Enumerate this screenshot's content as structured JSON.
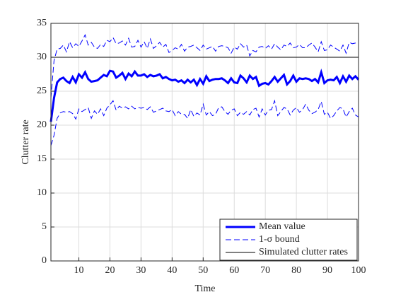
{
  "chart_data": {
    "type": "line",
    "xlabel": "Time",
    "ylabel": "Clutter rate",
    "x": [
      1,
      2,
      3,
      4,
      5,
      6,
      7,
      8,
      9,
      10,
      11,
      12,
      13,
      14,
      15,
      16,
      17,
      18,
      19,
      20,
      21,
      22,
      23,
      24,
      25,
      26,
      27,
      28,
      29,
      30,
      31,
      32,
      33,
      34,
      35,
      36,
      37,
      38,
      39,
      40,
      41,
      42,
      43,
      44,
      45,
      46,
      47,
      48,
      49,
      50,
      51,
      52,
      53,
      54,
      55,
      56,
      57,
      58,
      59,
      60,
      61,
      62,
      63,
      64,
      65,
      66,
      67,
      68,
      69,
      70,
      71,
      72,
      73,
      74,
      75,
      76,
      77,
      78,
      79,
      80,
      81,
      82,
      83,
      84,
      85,
      86,
      87,
      88,
      89,
      90,
      91,
      92,
      93,
      94,
      95,
      96,
      97,
      98,
      99,
      100
    ],
    "xlim": [
      1,
      100
    ],
    "xticks": [
      10,
      20,
      30,
      40,
      50,
      60,
      70,
      80,
      90,
      100
    ],
    "ylim": [
      0,
      35
    ],
    "yticks": [
      0,
      5,
      10,
      15,
      20,
      25,
      30,
      35
    ],
    "grid": true,
    "legend": "lower right",
    "series": [
      {
        "name": "Mean value",
        "color": "#0000ff",
        "style": "solid",
        "width": 3,
        "values": [
          20.5,
          24,
          26.3,
          26.8,
          27,
          26.5,
          26.2,
          27.1,
          26.3,
          27.5,
          27,
          27.8,
          26.8,
          26.4,
          26.5,
          26.6,
          27,
          27.4,
          27.2,
          28,
          27.9,
          27,
          27.3,
          27.7,
          26.8,
          27.6,
          27.2,
          27.9,
          27.3,
          27.3,
          27.5,
          27.1,
          27.4,
          27.2,
          27.3,
          27.5,
          26.9,
          27.1,
          26.8,
          26.6,
          26.7,
          26.4,
          26.6,
          26.2,
          26.7,
          26.3,
          26.7,
          25.9,
          26.8,
          26.1,
          27.2,
          26.5,
          26.7,
          26.8,
          26.8,
          26.9,
          26.6,
          26.2,
          26.9,
          26.3,
          26.2,
          27.3,
          26.9,
          26.3,
          27.3,
          26.8,
          27.1,
          25.8,
          26.1,
          26.2,
          26.0,
          26.5,
          27.1,
          26.4,
          26.9,
          27.4,
          26.0,
          26.5,
          27.3,
          26.4,
          26.9,
          26.8,
          26.9,
          26.8,
          26.5,
          26.8,
          26.3,
          27.8,
          26.2,
          26.6,
          26.7,
          26.6,
          27.1,
          26.2,
          27.2,
          26.4,
          27.3,
          26.8,
          27.2,
          26.7
        ]
      },
      {
        "name": "1-σ bound",
        "color": "#0000ff",
        "style": "dashed",
        "width": 1,
        "upper": [
          24,
          29.5,
          31.2,
          31.3,
          31.8,
          30.8,
          32.3,
          31.4,
          32.0,
          31.6,
          32.4,
          33.3,
          31.8,
          32.2,
          31.5,
          31.3,
          31.9,
          31.6,
          32.5,
          32.3,
          32.9,
          32.0,
          32.1,
          32.4,
          31.8,
          32.8,
          31.5,
          31.6,
          32.5,
          31.5,
          32.3,
          31.3,
          32.7,
          31.3,
          31.7,
          32.2,
          31.5,
          31.9,
          30.7,
          31.0,
          31.4,
          31.2,
          31.9,
          30.9,
          31.5,
          31.6,
          31.8,
          31.4,
          31.0,
          31.8,
          31.2,
          31.4,
          31.6,
          30.9,
          31.6,
          31.7,
          31.6,
          31.4,
          30.6,
          31.5,
          31.2,
          32.0,
          31.5,
          31.8,
          30.2,
          31.0,
          30.8,
          31.5,
          31.6,
          31.3,
          31.7,
          31.2,
          32.0,
          31.5,
          31.1,
          31.8,
          31.6,
          32.1,
          31.4,
          31.5,
          31.9,
          31.4,
          31.4,
          31.8,
          32.1,
          31.5,
          30.8,
          32.3,
          31.0,
          31.1,
          31.8,
          31.5,
          31.2,
          30.9,
          31.8,
          30.6,
          32.2,
          32.0,
          32.1,
          32.3
        ],
        "lower": [
          17,
          18.5,
          21.0,
          21.8,
          22.0,
          21.9,
          22.0,
          21.7,
          20.9,
          22.4,
          22.0,
          22.3,
          22.6,
          21.0,
          22.1,
          21.6,
          22.4,
          21.4,
          22.5,
          23.0,
          23.6,
          22.2,
          22.8,
          22.5,
          22.7,
          22.4,
          22.8,
          22.4,
          22.6,
          22.5,
          22.6,
          22.3,
          22.7,
          21.9,
          22.1,
          22.3,
          22.5,
          22.1,
          22.0,
          22.3,
          21.4,
          22.0,
          21.6,
          21.6,
          21.0,
          22.3,
          21.3,
          21.8,
          21.5,
          23.1,
          21.5,
          22.0,
          21.4,
          21.6,
          22.6,
          22.7,
          22.0,
          21.6,
          22.2,
          22.4,
          21.4,
          21.9,
          21.6,
          22.0,
          21.5,
          22.3,
          22.5,
          21.2,
          22.4,
          21.5,
          22.2,
          22.3,
          23.6,
          21.4,
          22.0,
          22.6,
          22.4,
          21.5,
          22.2,
          22.6,
          21.9,
          22.3,
          23.1,
          22.2,
          21.7,
          21.9,
          22.3,
          23.5,
          21.6,
          21.9,
          21.0,
          21.4,
          22.1,
          22.6,
          22.4,
          21.2,
          22.0,
          22.5,
          21.5,
          21.2
        ]
      },
      {
        "name": "Simulated clutter rates",
        "color": "#000000",
        "style": "solid",
        "width": 1,
        "values": [
          30,
          30,
          30,
          30,
          30,
          30,
          30,
          30,
          30,
          30,
          30,
          30,
          30,
          30,
          30,
          30,
          30,
          30,
          30,
          30,
          30,
          30,
          30,
          30,
          30,
          30,
          30,
          30,
          30,
          30,
          30,
          30,
          30,
          30,
          30,
          30,
          30,
          30,
          30,
          30,
          30,
          30,
          30,
          30,
          30,
          30,
          30,
          30,
          30,
          30,
          30,
          30,
          30,
          30,
          30,
          30,
          30,
          30,
          30,
          30,
          30,
          30,
          30,
          30,
          30,
          30,
          30,
          30,
          30,
          30,
          30,
          30,
          30,
          30,
          30,
          30,
          30,
          30,
          30,
          30,
          30,
          30,
          30,
          30,
          30,
          30,
          30,
          30,
          30,
          30,
          30,
          30,
          30,
          30,
          30,
          30,
          30,
          30,
          30,
          30
        ]
      }
    ]
  }
}
